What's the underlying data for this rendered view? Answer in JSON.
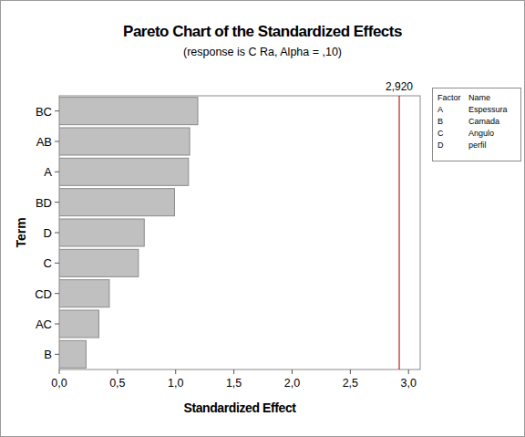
{
  "chart_data": {
    "type": "bar",
    "orientation": "horizontal",
    "title": "Pareto Chart of the Standardized Effects",
    "subtitle": "(response is C Ra, Alpha = ,10)",
    "x_label": "Standardized Effect",
    "y_label": "Term",
    "categories": [
      "BC",
      "AB",
      "A",
      "BD",
      "D",
      "C",
      "CD",
      "AC",
      "B"
    ],
    "values": [
      1.19,
      1.12,
      1.11,
      0.99,
      0.73,
      0.68,
      0.43,
      0.34,
      0.23
    ],
    "color": "#c0c0c0",
    "xlim": [
      0,
      3.1
    ],
    "xticks": [
      {
        "value": 0,
        "label": "0,0"
      },
      {
        "value": 0.5,
        "label": "0,5"
      },
      {
        "value": 1,
        "label": "1,0"
      },
      {
        "value": 1.5,
        "label": "1,5"
      },
      {
        "value": 2,
        "label": "2,0"
      },
      {
        "value": 2.5,
        "label": "2,5"
      },
      {
        "value": 3,
        "label": "3,0"
      }
    ],
    "grid": false,
    "reference_line": {
      "value": 2.92,
      "label": "2,920",
      "color": "#b22222"
    },
    "factor_table": {
      "header": [
        "Factor",
        "Name"
      ],
      "rows": [
        [
          "A",
          "Espessura"
        ],
        [
          "B",
          "Camada"
        ],
        [
          "C",
          "Angulo"
        ],
        [
          "D",
          "perfil"
        ]
      ]
    }
  }
}
